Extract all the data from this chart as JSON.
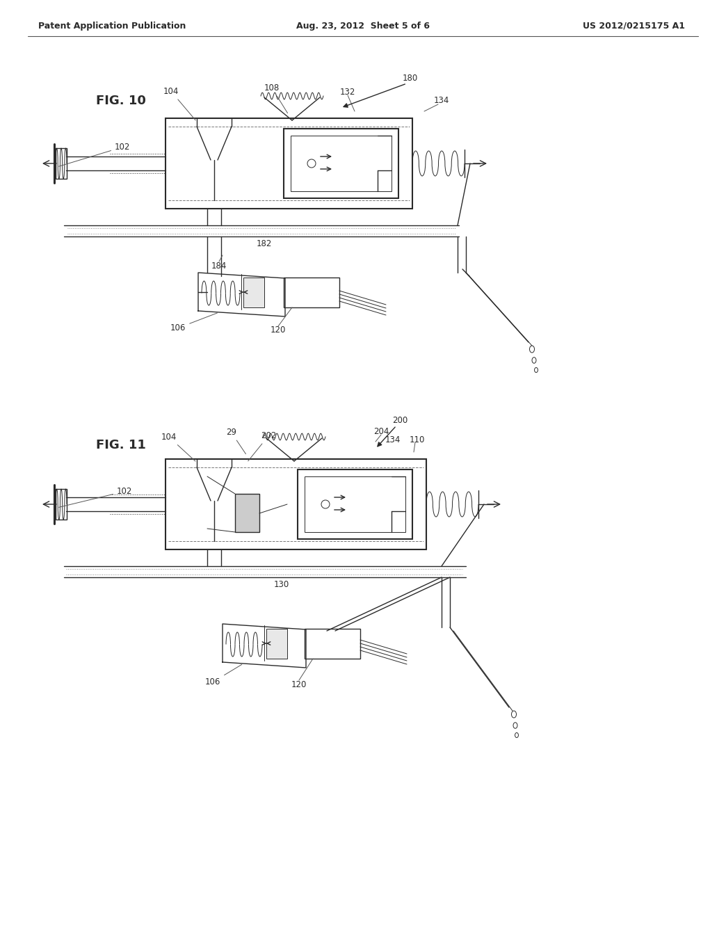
{
  "background_color": "#ffffff",
  "header_left": "Patent Application Publication",
  "header_center": "Aug. 23, 2012  Sheet 5 of 6",
  "header_right": "US 2012/0215175 A1",
  "line_color": "#2a2a2a",
  "label_color": "#2a2a2a",
  "font_size_label": 8.5,
  "font_size_fig": 13,
  "font_size_header": 9
}
